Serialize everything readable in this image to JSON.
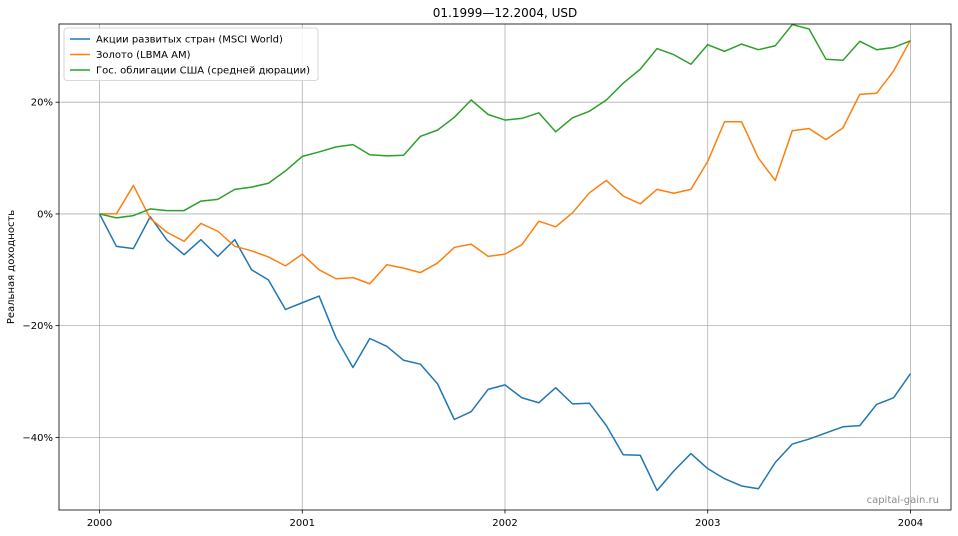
{
  "chart_data": {
    "type": "line",
    "title": "01.1999—12.2004, USD",
    "ylabel": "Реальная доходность",
    "xlabel": "",
    "watermark": "capital-gain.ru",
    "grid": true,
    "legend_position": "top-left",
    "xlim": [
      1999.8,
      2004.2
    ],
    "ylim": [
      -53,
      34
    ],
    "x_ticks": [
      2000,
      2001,
      2002,
      2003,
      2004
    ],
    "x_tick_labels": [
      "2000",
      "2001",
      "2002",
      "2003",
      "2004"
    ],
    "y_ticks": [
      -40,
      -20,
      0,
      20
    ],
    "y_tick_labels": [
      "−40%",
      "−20%",
      "0%",
      "20%"
    ],
    "x": [
      2000.0,
      2000.083,
      2000.167,
      2000.25,
      2000.333,
      2000.417,
      2000.5,
      2000.583,
      2000.667,
      2000.75,
      2000.833,
      2000.917,
      2001.0,
      2001.083,
      2001.167,
      2001.25,
      2001.333,
      2001.417,
      2001.5,
      2001.583,
      2001.667,
      2001.75,
      2001.833,
      2001.917,
      2002.0,
      2002.083,
      2002.167,
      2002.25,
      2002.333,
      2002.417,
      2002.5,
      2002.583,
      2002.667,
      2002.75,
      2002.833,
      2002.917,
      2003.0,
      2003.083,
      2003.167,
      2003.25,
      2003.333,
      2003.417,
      2003.5,
      2003.583,
      2003.667,
      2003.75,
      2003.833,
      2003.917,
      2004.0
    ],
    "series": [
      {
        "name": "Акции развитых стран (MSCI World)",
        "color": "#1f77b4",
        "values": [
          0,
          -5.8,
          -6.2,
          -0.5,
          -4.7,
          -7.3,
          -4.6,
          -7.6,
          -4.6,
          -10.0,
          -11.8,
          -17.1,
          -15.9,
          -14.7,
          -22.2,
          -27.5,
          -22.3,
          -23.7,
          -26.2,
          -26.9,
          -30.4,
          -36.8,
          -35.4,
          -31.4,
          -30.6,
          -32.9,
          -33.8,
          -31.1,
          -34.0,
          -33.9,
          -37.9,
          -43.1,
          -43.2,
          -49.5,
          -46.0,
          -42.9,
          -45.6,
          -47.4,
          -48.7,
          -49.2,
          -44.5,
          -41.2,
          -40.3,
          -39.2,
          -38.1,
          -37.9,
          -34.1,
          -32.9,
          -28.6
        ]
      },
      {
        "name": "Золото (LBMA AM)",
        "color": "#ff7f0e",
        "values": [
          0,
          0,
          5.1,
          -0.8,
          -3.3,
          -4.9,
          -1.7,
          -3.1,
          -5.8,
          -6.6,
          -7.7,
          -9.3,
          -7.2,
          -10.0,
          -11.6,
          -11.4,
          -12.5,
          -9.1,
          -9.7,
          -10.5,
          -8.8,
          -6.0,
          -5.4,
          -7.6,
          -7.2,
          -5.5,
          -1.3,
          -2.3,
          0.2,
          3.8,
          6.0,
          3.2,
          1.8,
          4.4,
          3.7,
          4.4,
          9.4,
          16.5,
          16.5,
          10.0,
          6.0,
          14.9,
          15.3,
          13.3,
          15.4,
          21.4,
          21.6,
          25.6,
          31.1
        ]
      },
      {
        "name": "Гос. облигации США (средней дюрации)",
        "color": "#2ca02c",
        "values": [
          0,
          -0.7,
          -0.3,
          0.9,
          0.6,
          0.6,
          2.3,
          2.6,
          4.4,
          4.8,
          5.5,
          7.7,
          10.3,
          11.1,
          12.0,
          12.4,
          10.6,
          10.4,
          10.5,
          13.9,
          15.0,
          17.3,
          20.4,
          17.8,
          16.8,
          17.1,
          18.1,
          14.7,
          17.2,
          18.4,
          20.4,
          23.4,
          25.9,
          29.6,
          28.5,
          26.8,
          30.3,
          29.1,
          30.4,
          29.4,
          30.1,
          33.9,
          33.1,
          27.7,
          27.5,
          30.9,
          29.4,
          29.8,
          31.0
        ]
      }
    ]
  }
}
